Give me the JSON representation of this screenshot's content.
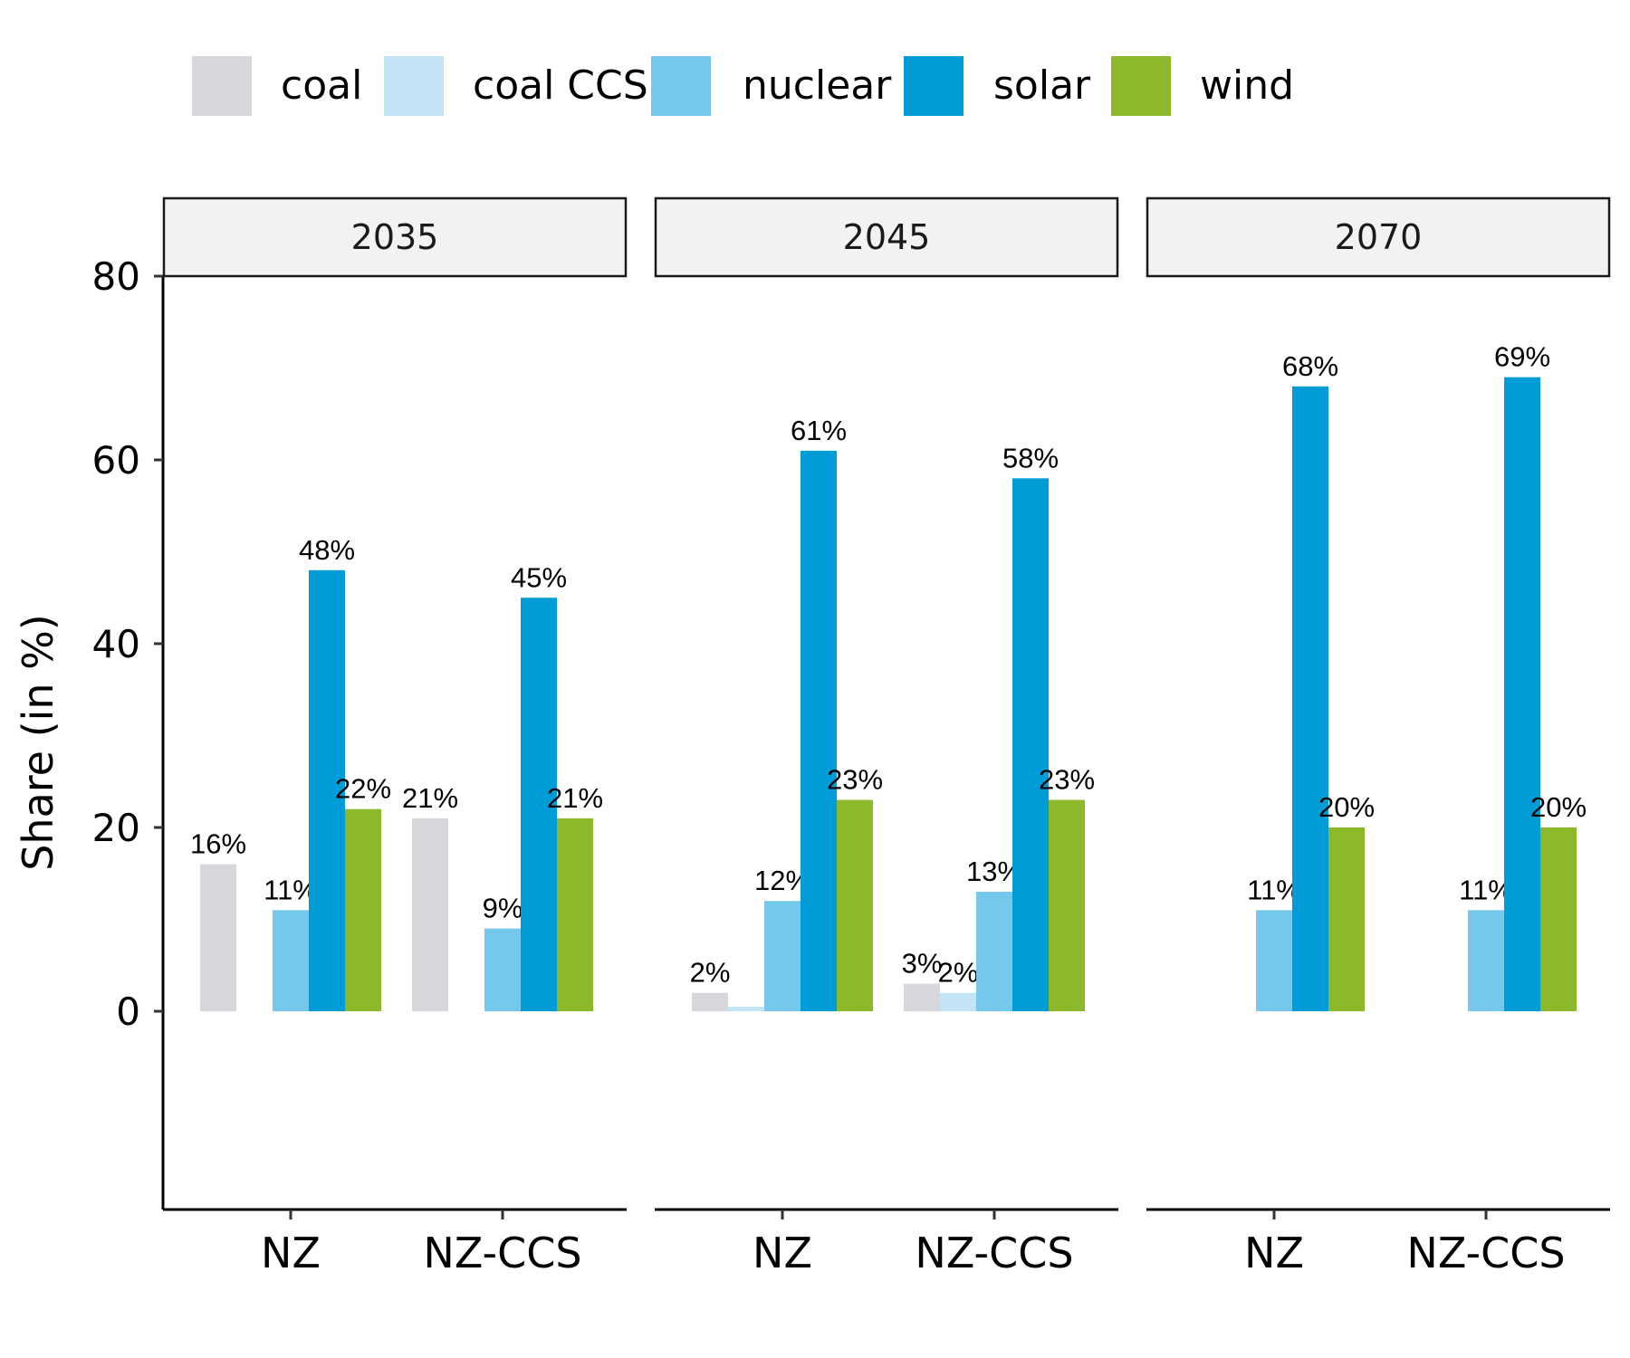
{
  "colors": {
    "coal": "#d6d7db",
    "coal CCS": "#c3e4f5",
    "nuclear": "#74c8ec",
    "solar": "#009cd7",
    "wind": "#8db829"
  },
  "chart_data": {
    "type": "bar",
    "ylabel": "Share (in %)",
    "ylim": [
      0,
      80
    ],
    "yticks": [
      0,
      20,
      40,
      60,
      80
    ],
    "legend_position": "top",
    "grid": false,
    "series_names": [
      "coal",
      "coal CCS",
      "nuclear",
      "solar",
      "wind"
    ],
    "panels": [
      {
        "title": "2035",
        "categories": [
          "NZ",
          "NZ-CCS"
        ],
        "groups": [
          {
            "category": "NZ",
            "bars": [
              {
                "series": "coal",
                "value": 16,
                "label": "16%"
              },
              {
                "series": "nuclear",
                "value": 11,
                "label": "11%"
              },
              {
                "series": "solar",
                "value": 48,
                "label": "48%"
              },
              {
                "series": "wind",
                "value": 22,
                "label": "22%"
              }
            ]
          },
          {
            "category": "NZ-CCS",
            "bars": [
              {
                "series": "coal",
                "value": 21,
                "label": "21%"
              },
              {
                "series": "nuclear",
                "value": 9,
                "label": "9%"
              },
              {
                "series": "solar",
                "value": 45,
                "label": "45%"
              },
              {
                "series": "wind",
                "value": 21,
                "label": "21%"
              }
            ]
          }
        ]
      },
      {
        "title": "2045",
        "categories": [
          "NZ",
          "NZ-CCS"
        ],
        "groups": [
          {
            "category": "NZ",
            "bars": [
              {
                "series": "coal",
                "value": 2,
                "label": "2%"
              },
              {
                "series": "coal CCS",
                "value": 0.5,
                "label": ""
              },
              {
                "series": "nuclear",
                "value": 12,
                "label": "12%"
              },
              {
                "series": "solar",
                "value": 61,
                "label": "61%"
              },
              {
                "series": "wind",
                "value": 23,
                "label": "23%"
              }
            ]
          },
          {
            "category": "NZ-CCS",
            "bars": [
              {
                "series": "coal",
                "value": 3,
                "label": "3%"
              },
              {
                "series": "coal CCS",
                "value": 2,
                "label": "2%"
              },
              {
                "series": "nuclear",
                "value": 13,
                "label": "13%"
              },
              {
                "series": "solar",
                "value": 58,
                "label": "58%"
              },
              {
                "series": "wind",
                "value": 23,
                "label": "23%"
              }
            ]
          }
        ]
      },
      {
        "title": "2070",
        "categories": [
          "NZ",
          "NZ-CCS"
        ],
        "groups": [
          {
            "category": "NZ",
            "bars": [
              {
                "series": "nuclear",
                "value": 11,
                "label": "11%"
              },
              {
                "series": "solar",
                "value": 68,
                "label": "68%"
              },
              {
                "series": "wind",
                "value": 20,
                "label": "20%"
              }
            ]
          },
          {
            "category": "NZ-CCS",
            "bars": [
              {
                "series": "nuclear",
                "value": 11,
                "label": "11%"
              },
              {
                "series": "solar",
                "value": 69,
                "label": "69%"
              },
              {
                "series": "wind",
                "value": 20,
                "label": "20%"
              }
            ]
          }
        ]
      }
    ]
  }
}
